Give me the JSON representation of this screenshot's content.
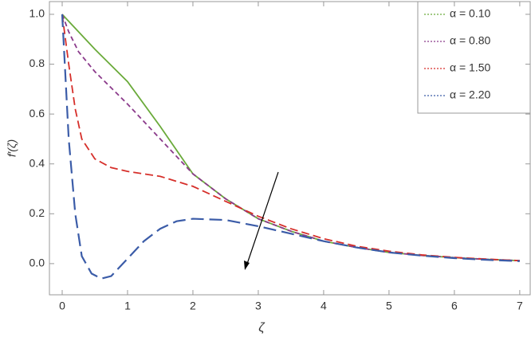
{
  "chart_data": {
    "type": "line",
    "xlabel": "ζ",
    "ylabel": "f′(ζ)",
    "xlim": [
      -0.195,
      7.16
    ],
    "ylim": [
      -0.125,
      1.051
    ],
    "xticks": [
      0,
      1,
      2,
      3,
      4,
      5,
      6,
      7
    ],
    "yticks": [
      {
        "value": 0,
        "label": "0.0"
      },
      {
        "value": 0.2,
        "label": "0.2"
      },
      {
        "value": 0.4,
        "label": "0.4"
      },
      {
        "value": 0.6,
        "label": "0.6"
      },
      {
        "value": 0.8,
        "label": "0.8"
      },
      {
        "value": 1,
        "label": "1.0"
      }
    ],
    "legend": "top-right",
    "series": [
      {
        "name": "α = 0.10",
        "color": "#6aaa3a",
        "dash": "solid",
        "x": [
          0,
          0.5,
          1,
          1.5,
          2,
          2.5,
          3,
          3.5,
          4,
          4.5,
          5,
          5.5,
          6,
          6.5,
          7
        ],
        "values": [
          1.0,
          0.86,
          0.73,
          0.55,
          0.36,
          0.26,
          0.18,
          0.13,
          0.09,
          0.065,
          0.045,
          0.033,
          0.024,
          0.017,
          0.012
        ]
      },
      {
        "name": "α = 0.80",
        "color": "#8b3a8b",
        "dash": "short",
        "x": [
          0,
          0.1,
          0.25,
          0.5,
          1,
          1.5,
          2,
          2.5,
          3,
          3.5,
          4,
          4.5,
          5,
          5.5,
          6,
          6.5,
          7
        ],
        "values": [
          1.0,
          0.93,
          0.85,
          0.77,
          0.64,
          0.5,
          0.36,
          0.26,
          0.18,
          0.13,
          0.09,
          0.065,
          0.045,
          0.033,
          0.024,
          0.017,
          0.012
        ]
      },
      {
        "name": "α = 1.50",
        "color": "#d62f2a",
        "dash": "medium",
        "x": [
          0,
          0.1,
          0.2,
          0.3,
          0.5,
          0.75,
          1,
          1.5,
          2,
          2.5,
          3,
          3.5,
          4,
          4.5,
          5,
          5.5,
          6,
          6.5,
          7
        ],
        "values": [
          1.0,
          0.8,
          0.62,
          0.5,
          0.42,
          0.385,
          0.37,
          0.35,
          0.31,
          0.25,
          0.19,
          0.14,
          0.1,
          0.07,
          0.05,
          0.035,
          0.025,
          0.018,
          0.012
        ]
      },
      {
        "name": "α = 2.20",
        "color": "#3b5ca8",
        "dash": "long",
        "x": [
          0,
          0.05,
          0.1,
          0.2,
          0.3,
          0.45,
          0.6,
          0.75,
          1,
          1.25,
          1.5,
          1.75,
          2,
          2.5,
          3,
          3.5,
          4,
          4.5,
          5,
          5.5,
          6,
          6.5,
          7
        ],
        "values": [
          1.0,
          0.75,
          0.5,
          0.2,
          0.03,
          -0.04,
          -0.06,
          -0.05,
          0.02,
          0.09,
          0.14,
          0.17,
          0.18,
          0.175,
          0.15,
          0.12,
          0.09,
          0.065,
          0.045,
          0.032,
          0.022,
          0.015,
          0.01
        ]
      }
    ]
  }
}
